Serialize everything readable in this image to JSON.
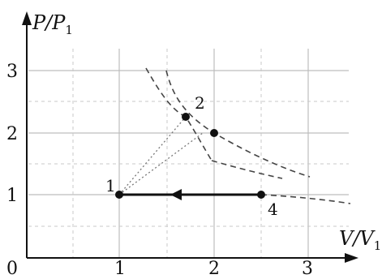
{
  "axes": {
    "y_label": "P/P",
    "y_label_sub": "1",
    "x_label": "V/V",
    "x_label_sub": "1",
    "origin": "0",
    "x_ticks": [
      "1",
      "2",
      "3"
    ],
    "y_ticks": [
      "1",
      "2",
      "3"
    ]
  },
  "points": {
    "p1": "1",
    "p2": "2",
    "p4": "4"
  }
}
